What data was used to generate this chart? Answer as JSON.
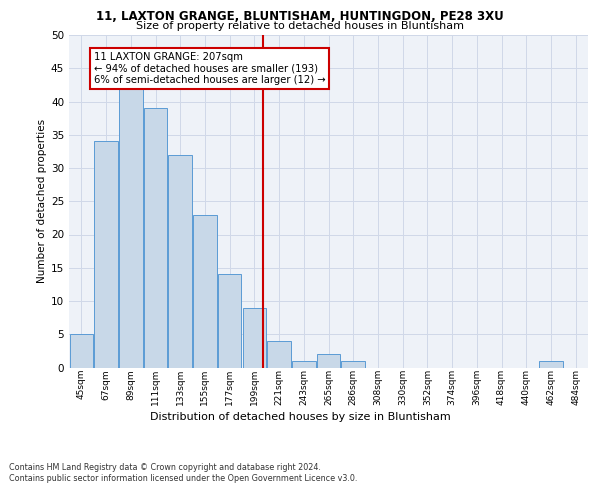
{
  "title1": "11, LAXTON GRANGE, BLUNTISHAM, HUNTINGDON, PE28 3XU",
  "title2": "Size of property relative to detached houses in Bluntisham",
  "xlabel": "Distribution of detached houses by size in Bluntisham",
  "ylabel": "Number of detached properties",
  "bin_labels": [
    "45sqm",
    "67sqm",
    "89sqm",
    "111sqm",
    "133sqm",
    "155sqm",
    "177sqm",
    "199sqm",
    "221sqm",
    "243sqm",
    "265sqm",
    "286sqm",
    "308sqm",
    "330sqm",
    "352sqm",
    "374sqm",
    "396sqm",
    "418sqm",
    "440sqm",
    "462sqm",
    "484sqm"
  ],
  "bar_heights": [
    5,
    34,
    42,
    39,
    32,
    23,
    14,
    9,
    4,
    1,
    2,
    1,
    0,
    0,
    0,
    0,
    0,
    0,
    0,
    1,
    0
  ],
  "bar_color": "#c8d8e8",
  "bar_edge_color": "#5b9bd5",
  "ylim": [
    0,
    50
  ],
  "yticks": [
    0,
    5,
    10,
    15,
    20,
    25,
    30,
    35,
    40,
    45,
    50
  ],
  "annotation_text": "11 LAXTON GRANGE: 207sqm\n← 94% of detached houses are smaller (193)\n6% of semi-detached houses are larger (12) →",
  "annotation_box_color": "#ffffff",
  "annotation_box_edge": "#cc0000",
  "property_line_color": "#cc0000",
  "footnote1": "Contains HM Land Registry data © Crown copyright and database right 2024.",
  "footnote2": "Contains public sector information licensed under the Open Government Licence v3.0.",
  "grid_color": "#d0d8e8",
  "bg_color": "#eef2f8"
}
